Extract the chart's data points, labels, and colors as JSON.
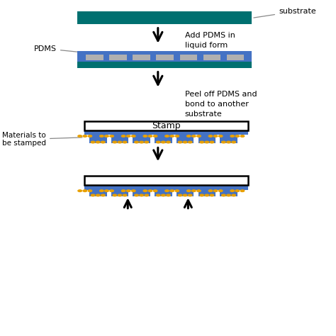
{
  "bg_color": "#ffffff",
  "teal_color": "#007070",
  "blue_color": "#4472C4",
  "gray_color": "#B0B0B0",
  "gold_color": "#E8A000",
  "black_color": "#000000",
  "white_color": "#ffffff",
  "substrate_label": "substrate",
  "pdms_label": "PDMS",
  "stamp_label": "Stamp",
  "materials_label": "Materials to\nbe stamped",
  "step1_text": "Add PDMS in\nliquid form",
  "step2_text": "Peel off PDMS and\nbond to another\nsubstrate",
  "fig_width": 4.74,
  "fig_height": 4.74,
  "dpi": 100
}
